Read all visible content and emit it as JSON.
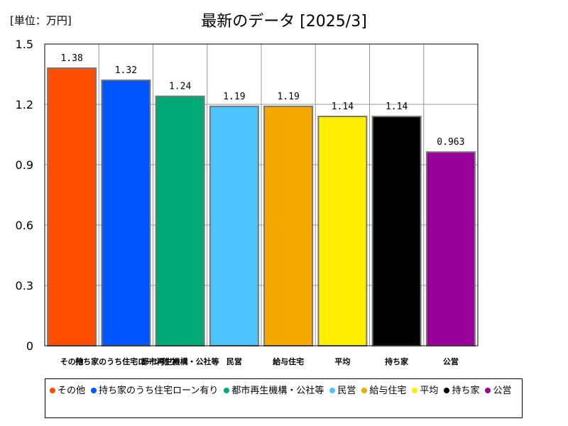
{
  "unit_label": "[単位：万円]",
  "chart_data": {
    "type": "bar",
    "title": "最新のデータ [2025/3]",
    "ylim": [
      0,
      1.5
    ],
    "yticks": [
      "0",
      "0.3",
      "0.6",
      "0.9",
      "1.2",
      "1.5"
    ],
    "grid": true,
    "legend_position": "bottom",
    "categories": [
      "その他",
      "持ち家のうち住宅ローン有り",
      "都市再生機構・公社等",
      "民営",
      "給与住宅",
      "平均",
      "持ち家",
      "公営"
    ],
    "values": [
      1.38,
      1.32,
      1.24,
      1.19,
      1.19,
      1.14,
      1.14,
      0.963
    ],
    "value_labels": [
      "1.38",
      "1.32",
      "1.24",
      "1.19",
      "1.19",
      "1.14",
      "1.14",
      "0.963"
    ],
    "colors": [
      "#ff4e00",
      "#0055ff",
      "#00aa77",
      "#4dc3ff",
      "#f5a800",
      "#ffee00",
      "#000000",
      "#990099"
    ]
  }
}
